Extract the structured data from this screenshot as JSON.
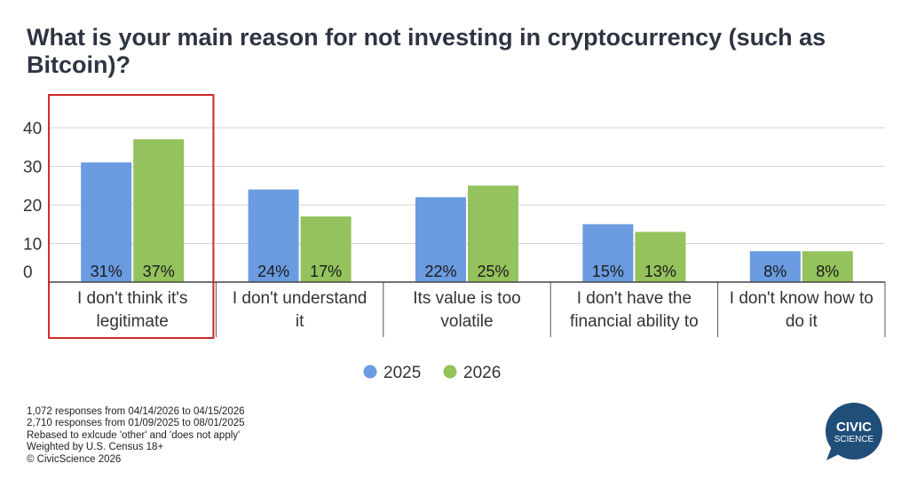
{
  "title": "What is your main reason for not investing in cryptocurrency (such as Bitcoin)?",
  "chart_data": {
    "type": "bar",
    "title": "What is your main reason for not investing in cryptocurrency (such as Bitcoin)?",
    "categories": [
      [
        "I don't think it's",
        "legitimate"
      ],
      [
        "I don't understand",
        "it"
      ],
      [
        "Its value is too",
        "volatile"
      ],
      [
        "I don't have the",
        "financial ability to"
      ],
      [
        "I don't know how to",
        "do it"
      ]
    ],
    "series": [
      {
        "name": "2025",
        "color": "#6b9be0",
        "values": [
          31,
          24,
          22,
          15,
          8
        ]
      },
      {
        "name": "2026",
        "color": "#94c25c",
        "values": [
          37,
          17,
          25,
          13,
          8
        ]
      }
    ],
    "data_labels": [
      [
        "31%",
        "24%",
        "22%",
        "15%",
        "8%"
      ],
      [
        "37%",
        "17%",
        "25%",
        "13%",
        "8%"
      ]
    ],
    "yticks": [
      0,
      10,
      20,
      30,
      40
    ],
    "ylim": [
      0,
      40
    ],
    "xlabel": "",
    "ylabel": "",
    "grid": true,
    "legend_position": "bottom",
    "highlighted_category": 0,
    "highlight_color": "#cc2a2a"
  },
  "notes": [
    "1,072 responses from 04/14/2026 to 04/15/2026",
    "2,710 responses from 01/09/2025 to 08/01/2025",
    "Rebased to exlcude 'other' and 'does not apply'",
    "Weighted by U.S. Census 18+",
    "© CivicScience 2026"
  ],
  "logo": {
    "line1": "CIVIC",
    "line2": "SCIENCE",
    "color": "#1f4e79"
  }
}
